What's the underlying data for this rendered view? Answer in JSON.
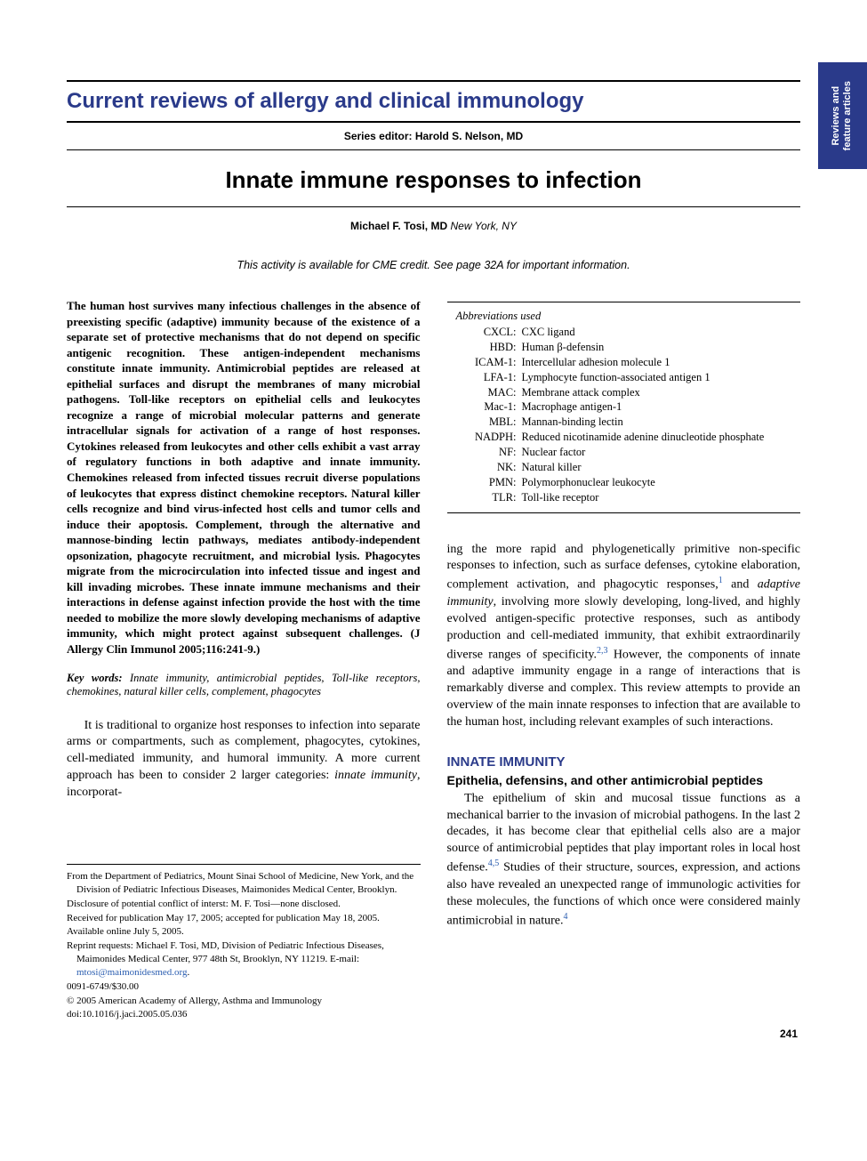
{
  "sideTab": "Reviews and\nfeature articles",
  "seriesHeader": "Current reviews of allergy and clinical immunology",
  "seriesEditor": "Series editor: Harold S. Nelson, MD",
  "articleTitle": "Innate immune responses to infection",
  "author": {
    "name": "Michael F. Tosi, MD",
    "location": "New York, NY"
  },
  "cmeLine": "This activity is available for CME credit. See page 32A for important information.",
  "abstract": "The human host survives many infectious challenges in the absence of preexisting specific (adaptive) immunity because of the existence of a separate set of protective mechanisms that do not depend on specific antigenic recognition. These antigen-independent mechanisms constitute innate immunity. Antimicrobial peptides are released at epithelial surfaces and disrupt the membranes of many microbial pathogens. Toll-like receptors on epithelial cells and leukocytes recognize a range of microbial molecular patterns and generate intracellular signals for activation of a range of host responses. Cytokines released from leukocytes and other cells exhibit a vast array of regulatory functions in both adaptive and innate immunity. Chemokines released from infected tissues recruit diverse populations of leukocytes that express distinct chemokine receptors. Natural killer cells recognize and bind virus-infected host cells and tumor cells and induce their apoptosis. Complement, through the alternative and mannose-binding lectin pathways, mediates antibody-independent opsonization, phagocyte recruitment, and microbial lysis. Phagocytes migrate from the microcirculation into infected tissue and ingest and kill invading microbes. These innate immune mechanisms and their interactions in defense against infection provide the host with the time needed to mobilize the more slowly developing mechanisms of adaptive immunity, which might protect against subsequent challenges. (J Allergy Clin Immunol 2005;116:241-9.)",
  "keywords": {
    "label": "Key words:",
    "text": " Innate immunity, antimicrobial peptides, Toll-like receptors, chemokines, natural killer cells, complement, phagocytes"
  },
  "body": {
    "leftPara": "It is traditional to organize host responses to infection into separate arms or compartments, such as complement, phagocytes, cytokines, cell-mediated immunity, and humoral immunity. A more current approach has been to consider 2 larger categories: ",
    "leftParaItal1": "innate immunity",
    "leftParaCont": ", incorporat-",
    "rightParaStart": "ing the more rapid and phylogenetically primitive non-specific responses to infection, such as surface defenses, cytokine elaboration, complement activation, and phagocytic responses,",
    "ref1": "1",
    "rightParaMid": " and ",
    "rightParaItal": "adaptive immunity",
    "rightParaMid2": ", involving more slowly developing, long-lived, and highly evolved antigen-specific protective responses, such as antibody production and cell-mediated immunity, that exhibit extraordinarily diverse ranges of specificity.",
    "ref23": "2,3",
    "rightParaEnd": " However, the components of innate and adaptive immunity engage in a range of interactions that is remarkably diverse and complex. This review attempts to provide an overview of the main innate responses to infection that are available to the human host, including relevant examples of such interactions."
  },
  "sectionHead": "INNATE IMMUNITY",
  "subsectionHead": "Epithelia, defensins, and other antimicrobial peptides",
  "sectionPara": {
    "p1": "The epithelium of skin and mucosal tissue functions as a mechanical barrier to the invasion of microbial pathogens. In the last 2 decades, it has become clear that epithelial cells also are a major source of antimicrobial peptides that play important roles in local host defense.",
    "ref45": "4,5",
    "p2": " Studies of their structure, sources, expression, and actions also have revealed an unexpected range of immunologic activities for these molecules, the functions of which once were considered mainly antimicrobial in nature.",
    "ref4": "4"
  },
  "abbreviations": {
    "header": "Abbreviations used",
    "rows": [
      {
        "k": "CXCL:",
        "v": "CXC ligand"
      },
      {
        "k": "HBD:",
        "v": "Human β-defensin"
      },
      {
        "k": "ICAM-1:",
        "v": "Intercellular adhesion molecule 1"
      },
      {
        "k": "LFA-1:",
        "v": "Lymphocyte function-associated antigen 1"
      },
      {
        "k": "MAC:",
        "v": "Membrane attack complex"
      },
      {
        "k": "Mac-1:",
        "v": "Macrophage antigen-1"
      },
      {
        "k": "MBL:",
        "v": "Mannan-binding lectin"
      },
      {
        "k": "NADPH:",
        "v": "Reduced nicotinamide adenine dinucleotide phosphate"
      },
      {
        "k": "NF:",
        "v": "Nuclear factor"
      },
      {
        "k": "NK:",
        "v": "Natural killer"
      },
      {
        "k": "PMN:",
        "v": "Polymorphonuclear leukocyte"
      },
      {
        "k": "TLR:",
        "v": "Toll-like receptor"
      }
    ]
  },
  "footnotes": {
    "from": "From the Department of Pediatrics, Mount Sinai School of Medicine, New York, and the Division of Pediatric Infectious Diseases, Maimonides Medical Center, Brooklyn.",
    "disclosure": "Disclosure of potential conflict of interst: M. F. Tosi—none disclosed.",
    "received": "Received for publication May 17, 2005; accepted for publication May 18, 2005.",
    "online": "Available online July 5, 2005.",
    "reprint": "Reprint requests: Michael F. Tosi, MD, Division of Pediatric Infectious Diseases, Maimonides Medical Center, 977 48th St, Brooklyn, NY 11219. E-mail: ",
    "email": "mtosi@maimonidesmed.org",
    "issn": "0091-6749/$30.00",
    "copyright": "© 2005 American Academy of Allergy, Asthma and Immunology",
    "doi": "doi:10.1016/j.jaci.2005.05.036"
  },
  "pageNum": "241",
  "colors": {
    "accent": "#2a3a8a",
    "link": "#2a5db0",
    "text": "#000000",
    "bg": "#ffffff"
  }
}
